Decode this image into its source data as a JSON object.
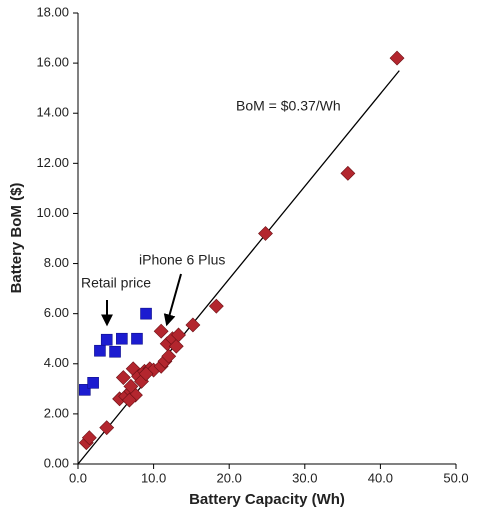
{
  "chart_data": {
    "type": "scatter",
    "x_label": "Battery Capacity (Wh)",
    "y_label": "Battery BoM  ($)",
    "xlim": [
      0,
      50
    ],
    "ylim": [
      0,
      18
    ],
    "xticks": [
      {
        "value": 0,
        "label": "0.0"
      },
      {
        "value": 10,
        "label": "10.0"
      },
      {
        "value": 20,
        "label": "20.0"
      },
      {
        "value": 30,
        "label": "30.0"
      },
      {
        "value": 40,
        "label": "40.0"
      },
      {
        "value": 50,
        "label": "50.0"
      }
    ],
    "yticks": [
      {
        "value": 0,
        "label": "0.00"
      },
      {
        "value": 2,
        "label": "2.00"
      },
      {
        "value": 4,
        "label": "4.00"
      },
      {
        "value": 6,
        "label": "6.00"
      },
      {
        "value": 8,
        "label": "8.00"
      },
      {
        "value": 10,
        "label": "10.00"
      },
      {
        "value": 12,
        "label": "12.00"
      },
      {
        "value": 14,
        "label": "14.00"
      },
      {
        "value": 16,
        "label": "16.00"
      },
      {
        "value": 18,
        "label": "18.00"
      }
    ],
    "series": [
      {
        "marker": "diamond",
        "color": "#b3262e",
        "x": [
          1.1,
          1.5,
          3.8,
          5.5,
          6.3,
          7.0,
          7.6,
          6.0,
          7.0,
          7.3,
          8.0,
          8.4,
          8.8,
          9.5,
          10.0,
          11.0,
          11.5,
          11.8,
          11.0,
          12.5,
          13.0,
          13.3,
          12.0,
          15.2,
          18.3,
          24.8,
          35.7,
          42.2,
          6.8,
          9.0
        ],
        "values": [
          0.85,
          1.05,
          1.45,
          2.6,
          2.7,
          2.9,
          2.75,
          3.45,
          3.1,
          3.8,
          3.5,
          3.3,
          3.7,
          3.8,
          3.75,
          3.9,
          4.1,
          4.8,
          5.3,
          5.0,
          4.7,
          5.15,
          4.3,
          5.55,
          6.3,
          9.2,
          11.6,
          16.2,
          2.55,
          3.6
        ]
      },
      {
        "marker": "square",
        "color": "#1c1cd0",
        "x": [
          0.9,
          2.0,
          2.9,
          3.8,
          4.9,
          5.8,
          7.8,
          9.0
        ],
        "values": [
          2.96,
          3.24,
          4.52,
          4.96,
          4.48,
          5.0,
          5.0,
          6.0
        ]
      }
    ],
    "fit_line": {
      "x": [
        0,
        42.5
      ],
      "values": [
        0,
        15.7
      ],
      "color": "#000000"
    },
    "annotations": [
      "BoM = $0.37/Wh",
      "iPhone 6 Plus",
      "Retail price"
    ]
  }
}
